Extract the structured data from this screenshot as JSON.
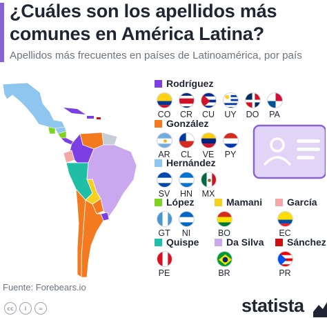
{
  "header": {
    "title": "¿Cuáles son los apellidos más comunes en América Latina?",
    "subtitle": "Apellidos más frecuentes en países de Latinoamérica, por país"
  },
  "chart_data": {
    "type": "map",
    "title": "¿Cuáles son los apellidos más comunes en América Latina?",
    "subtitle": "Apellidos más frecuentes en países de Latinoamérica, por país",
    "categories": [
      {
        "name": "Rodríguez",
        "color": "#7b3fe4",
        "countries": [
          "CO",
          "CR",
          "CU",
          "UY",
          "DO",
          "PA"
        ]
      },
      {
        "name": "González",
        "color": "#f47a1f",
        "countries": [
          "AR",
          "CL",
          "VE",
          "PY"
        ]
      },
      {
        "name": "Hernández",
        "color": "#8ec6f0",
        "countries": [
          "SV",
          "HN",
          "MX"
        ]
      },
      {
        "name": "López",
        "color": "#7fd321",
        "countries": [
          "GT",
          "NI"
        ]
      },
      {
        "name": "Mamani",
        "color": "#f5d01e",
        "countries": [
          "BO"
        ]
      },
      {
        "name": "García",
        "color": "#f4a7a7",
        "countries": [
          "EC"
        ]
      },
      {
        "name": "Quispe",
        "color": "#1fbfa7",
        "countries": [
          "PE"
        ]
      },
      {
        "name": "Da Silva",
        "color": "#c9a8ef",
        "countries": [
          "BR"
        ]
      },
      {
        "name": "Sánchez",
        "color": "#cf0e0e",
        "countries": [
          "PR"
        ]
      }
    ]
  },
  "footer": {
    "source": "Fuente: Forebears.io",
    "brand": "statista"
  },
  "icons": [
    "cc-icon",
    "by-icon",
    "equal-icon",
    "id-card-icon",
    "statista-logo-icon"
  ]
}
